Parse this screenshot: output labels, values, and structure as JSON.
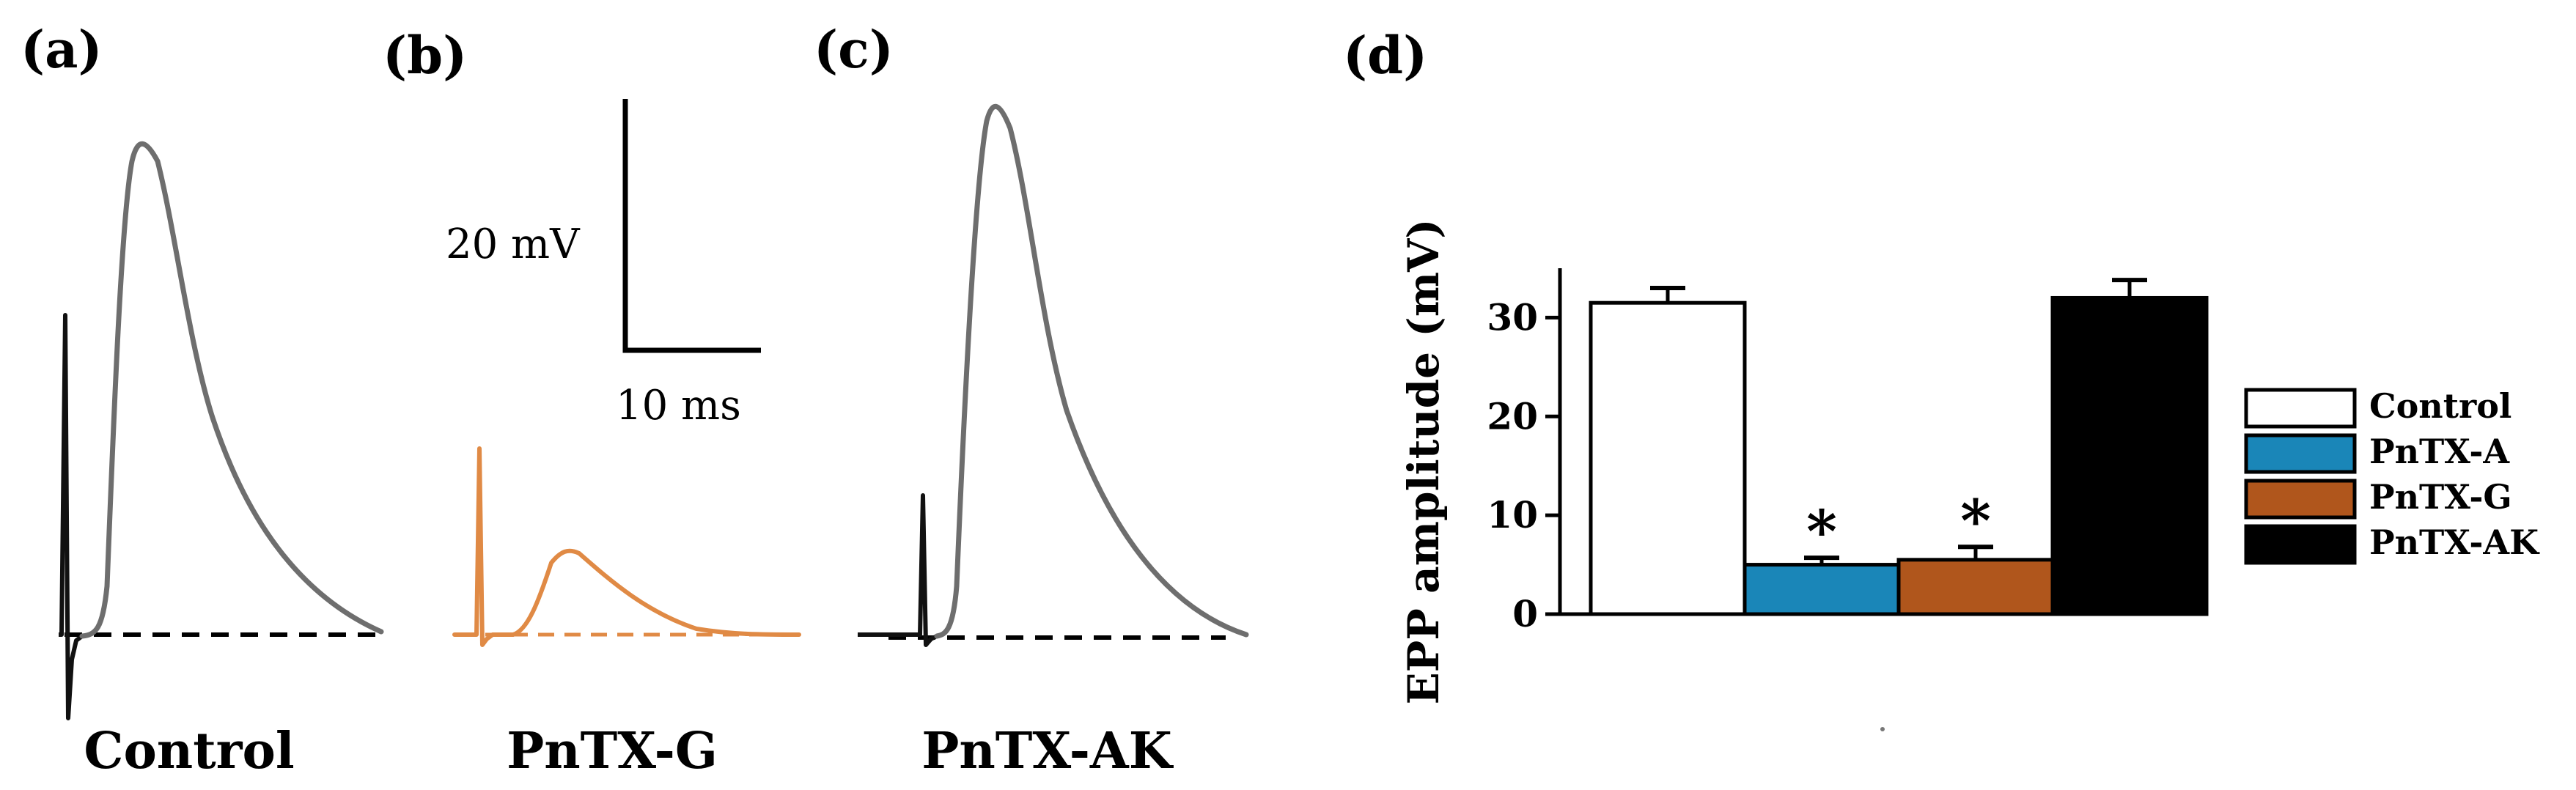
{
  "panels": {
    "a": {
      "letter": "(a)",
      "label": "Control"
    },
    "b": {
      "letter": "(b)",
      "label": "PnTX-G"
    },
    "c": {
      "letter": "(c)",
      "label": "PnTX-AK"
    },
    "d": {
      "letter": "(d)"
    }
  },
  "scale_bar": {
    "voltage": "20 mV",
    "time": "10 ms"
  },
  "colors": {
    "trace_gray": "#6e6e6e",
    "trace_black": "#111111",
    "trace_orange": "#e08a45",
    "control": "#ffffff",
    "pntx_a": "#1a86b8",
    "pntx_g": "#b0561c",
    "pntx_ak": "#000000"
  },
  "chart_data": {
    "type": "bar",
    "categories": [
      "Control",
      "PnTX-A",
      "PnTX-G",
      "PnTX-AK"
    ],
    "values": [
      31.5,
      5.0,
      5.5,
      32.0
    ],
    "errors": [
      1.5,
      0.7,
      1.3,
      1.8
    ],
    "significant": [
      false,
      true,
      true,
      false
    ],
    "significance_marker": "*",
    "ylabel": "EPP amplitude (mV)",
    "ylim": [
      0,
      35
    ],
    "yticks": [
      "0",
      "10",
      "20",
      "30"
    ],
    "legend": [
      "Control",
      "PnTX-A",
      "PnTX-G",
      "PnTX-AK"
    ],
    "legend_position": "right",
    "grid": false
  }
}
